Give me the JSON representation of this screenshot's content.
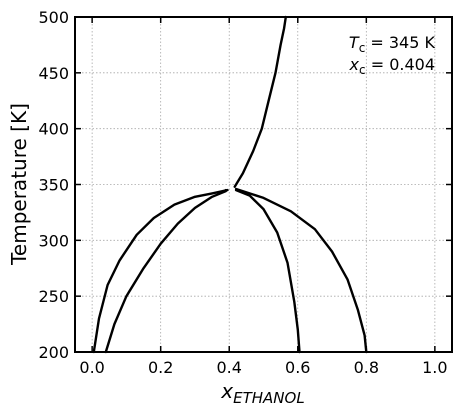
{
  "chart_data": {
    "type": "line",
    "xlabel_base": "x",
    "xlabel_sub": "ETHANOL",
    "ylabel": "Temperature [K]",
    "xlim": [
      -0.05,
      1.05
    ],
    "ylim": [
      200,
      500
    ],
    "x_ticks": [
      0.0,
      0.2,
      0.4,
      0.6,
      0.8,
      1.0
    ],
    "x_tick_labels": [
      "0.0",
      "0.2",
      "0.4",
      "0.6",
      "0.8",
      "1.0"
    ],
    "y_ticks": [
      200,
      250,
      300,
      350,
      400,
      450,
      500
    ],
    "y_tick_labels": [
      "200",
      "250",
      "300",
      "350",
      "400",
      "450",
      "500"
    ],
    "grid": true,
    "annotations": [
      {
        "sym": "T",
        "sub": "c",
        "rest": " = 345 K"
      },
      {
        "sym": "x",
        "sub": "c",
        "rest": " = 0.404"
      }
    ],
    "series": [
      {
        "points": [
          [
            0.416,
            348
          ],
          [
            0.44,
            360
          ],
          [
            0.47,
            380
          ],
          [
            0.495,
            400
          ],
          [
            0.515,
            425
          ],
          [
            0.535,
            450
          ],
          [
            0.55,
            475
          ],
          [
            0.56,
            490
          ],
          [
            0.565,
            500
          ]
        ]
      },
      {
        "points": [
          [
            0.005,
            200
          ],
          [
            0.02,
            230
          ],
          [
            0.045,
            260
          ],
          [
            0.08,
            282
          ],
          [
            0.13,
            305
          ],
          [
            0.18,
            320
          ],
          [
            0.24,
            332
          ],
          [
            0.3,
            339
          ],
          [
            0.35,
            342
          ],
          [
            0.38,
            344
          ],
          [
            0.395,
            345
          ]
        ]
      },
      {
        "points": [
          [
            0.04,
            200
          ],
          [
            0.065,
            225
          ],
          [
            0.1,
            250
          ],
          [
            0.15,
            275
          ],
          [
            0.2,
            297
          ],
          [
            0.25,
            315
          ],
          [
            0.3,
            329
          ],
          [
            0.35,
            339
          ],
          [
            0.39,
            344
          ],
          [
            0.39,
            345
          ]
        ]
      },
      {
        "points": [
          [
            0.42,
            345
          ],
          [
            0.46,
            340
          ],
          [
            0.5,
            328
          ],
          [
            0.54,
            307
          ],
          [
            0.57,
            280
          ],
          [
            0.59,
            245
          ],
          [
            0.6,
            220
          ],
          [
            0.605,
            200
          ]
        ]
      },
      {
        "points": [
          [
            0.42,
            346
          ],
          [
            0.5,
            338
          ],
          [
            0.58,
            326
          ],
          [
            0.65,
            310
          ],
          [
            0.7,
            290
          ],
          [
            0.745,
            265
          ],
          [
            0.775,
            238
          ],
          [
            0.795,
            215
          ],
          [
            0.8,
            200
          ]
        ]
      }
    ]
  }
}
